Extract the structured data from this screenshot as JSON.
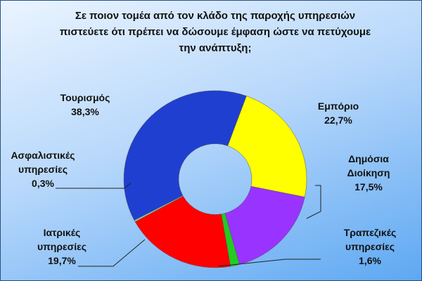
{
  "chart_data": {
    "type": "donut",
    "title": "Σε ποιον τομέα από τον κλάδο της παροχής υπηρεσιών πιστεύετε ότι πρέπει να δώσουμε έμφαση ώστε να πετύχουμε την ανάπτυξη;",
    "categories": [
      "Εμπόριο",
      "Δημόσια Διοίκηση",
      "Τραπεζικές υπηρεσίες",
      "Ιατρικές υπηρεσίες",
      "Ασφαλιστικές υπηρεσίες",
      "Τουρισμός"
    ],
    "values": [
      22.7,
      17.5,
      1.6,
      19.7,
      0.3,
      38.3
    ],
    "value_labels": [
      "22,7%",
      "17,5%",
      "1,6%",
      "19,7%",
      "0,3%",
      "38,3%"
    ],
    "colors": [
      "#ffff00",
      "#9933ff",
      "#22cc22",
      "#ff0000",
      "#99cc99",
      "#1f3fd0"
    ]
  }
}
